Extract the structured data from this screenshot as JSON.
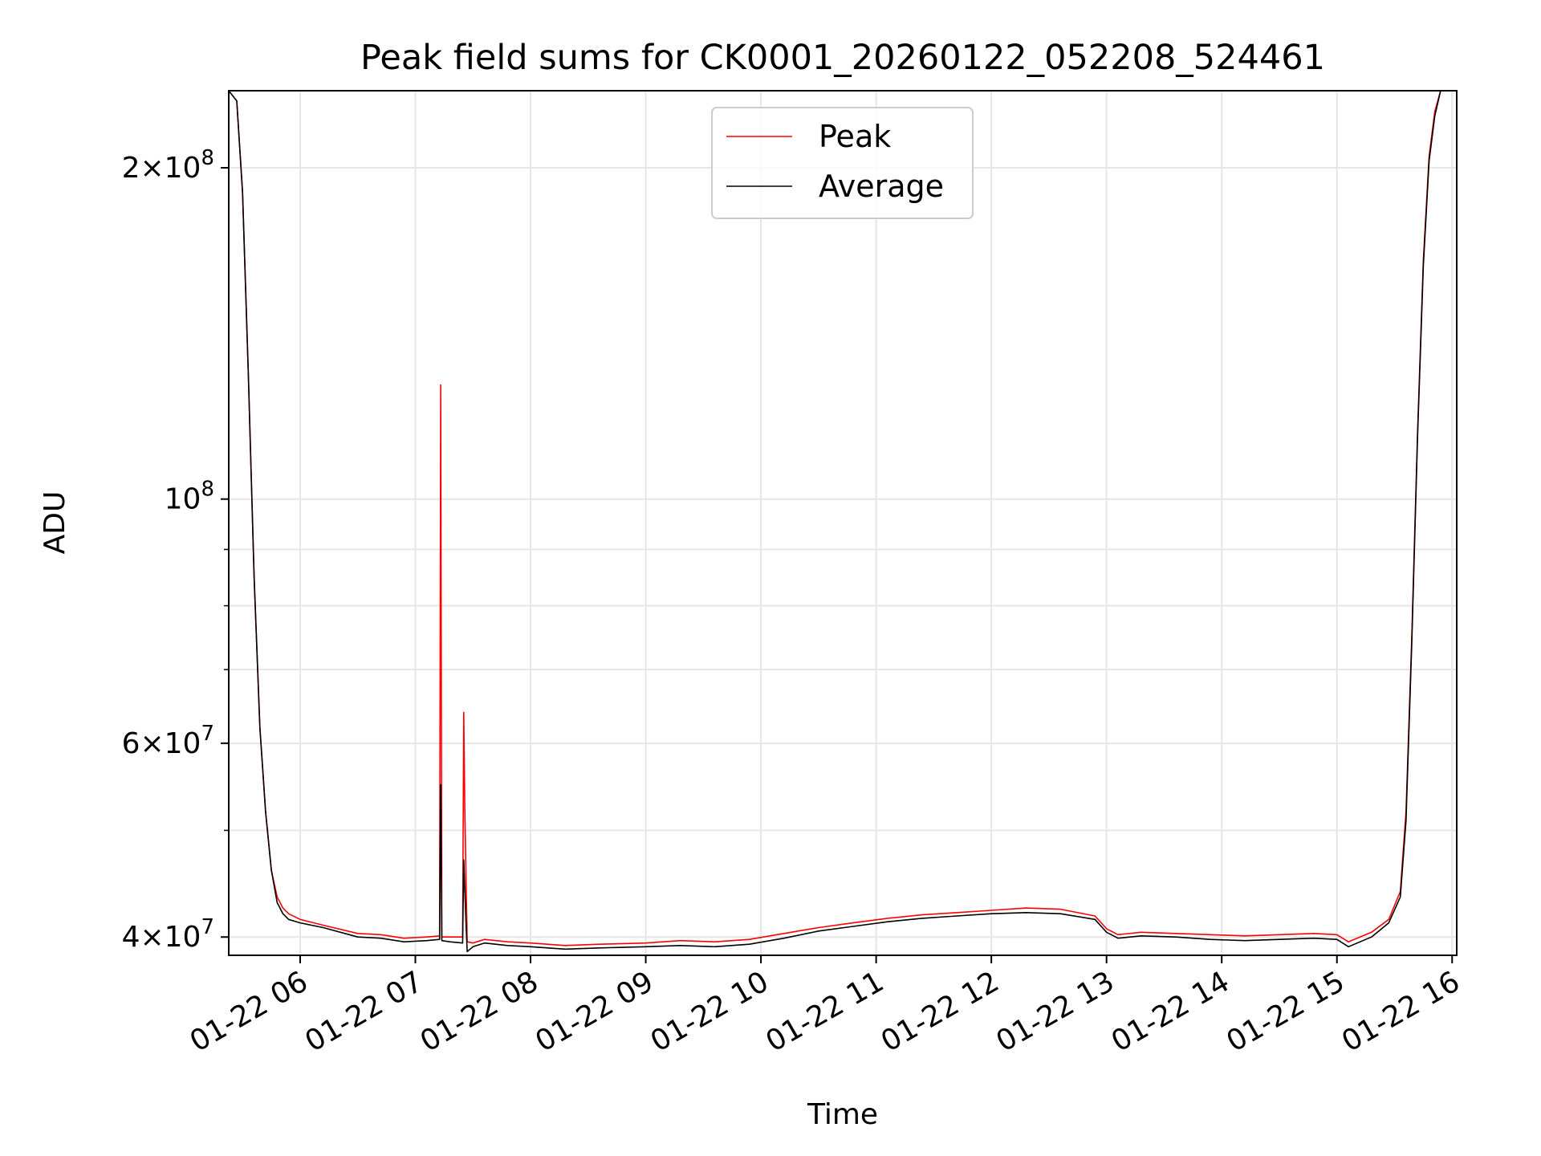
{
  "chart_data": {
    "type": "line",
    "title": "Peak field sums for CK0001_20260122_052208_524461",
    "xlabel": "Time",
    "ylabel": "ADU",
    "yscale": "log",
    "ylim": [
      38500000,
      235000000
    ],
    "xlim": [
      5.38,
      16.04
    ],
    "grid": true,
    "legend_position": "top-center",
    "x_ticks": [
      {
        "value": 6,
        "label": "01-22 06"
      },
      {
        "value": 7,
        "label": "01-22 07"
      },
      {
        "value": 8,
        "label": "01-22 08"
      },
      {
        "value": 9,
        "label": "01-22 09"
      },
      {
        "value": 10,
        "label": "01-22 10"
      },
      {
        "value": 11,
        "label": "01-22 11"
      },
      {
        "value": 12,
        "label": "01-22 12"
      },
      {
        "value": 13,
        "label": "01-22 13"
      },
      {
        "value": 14,
        "label": "01-22 14"
      },
      {
        "value": 15,
        "label": "01-22 15"
      },
      {
        "value": 16,
        "label": "01-22 16"
      }
    ],
    "y_major_ticks": [
      {
        "value": 40000000,
        "mantissa": "4",
        "exp": "7",
        "label": "4 × 10^7"
      },
      {
        "value": 60000000,
        "mantissa": "6",
        "exp": "7",
        "label": "6 × 10^7"
      },
      {
        "value": 100000000,
        "mantissa": "",
        "exp": "8",
        "label": "10^8"
      },
      {
        "value": 200000000,
        "mantissa": "2",
        "exp": "8",
        "label": "2 × 10^8"
      }
    ],
    "y_minor_ticks": [
      50000000,
      70000000,
      80000000,
      90000000
    ],
    "series": [
      {
        "name": "Peak",
        "color": "#ff0000",
        "x": [
          5.38,
          5.45,
          5.5,
          5.55,
          5.6,
          5.65,
          5.7,
          5.75,
          5.8,
          5.85,
          5.9,
          6.0,
          6.2,
          6.5,
          6.7,
          6.9,
          7.1,
          7.21,
          7.22,
          7.23,
          7.3,
          7.41,
          7.42,
          7.43,
          7.44,
          7.45,
          7.5,
          7.6,
          7.8,
          8.0,
          8.3,
          8.6,
          9.0,
          9.3,
          9.6,
          9.9,
          10.2,
          10.5,
          10.8,
          11.1,
          11.4,
          11.7,
          12.0,
          12.3,
          12.6,
          12.9,
          13.0,
          13.1,
          13.3,
          13.6,
          13.9,
          14.2,
          14.5,
          14.8,
          15.0,
          15.1,
          15.3,
          15.45,
          15.55,
          15.6,
          15.65,
          15.7,
          15.75,
          15.8,
          15.85,
          15.9,
          15.95,
          16.04
        ],
        "y": [
          235000000,
          230000000,
          190000000,
          130000000,
          85000000,
          62000000,
          52000000,
          46000000,
          43500000,
          42500000,
          42000000,
          41500000,
          41000000,
          40300000,
          40200000,
          39900000,
          40000000,
          40100000,
          127000000,
          40000000,
          40000000,
          40000000,
          64000000,
          52000000,
          45000000,
          39600000,
          39500000,
          39800000,
          39600000,
          39500000,
          39300000,
          39400000,
          39500000,
          39700000,
          39600000,
          39800000,
          40300000,
          40800000,
          41200000,
          41600000,
          41900000,
          42100000,
          42300000,
          42500000,
          42400000,
          41800000,
          40700000,
          40200000,
          40400000,
          40300000,
          40200000,
          40100000,
          40200000,
          40300000,
          40200000,
          39600000,
          40400000,
          41500000,
          44000000,
          52000000,
          75000000,
          115000000,
          165000000,
          205000000,
          225000000,
          235000000,
          235000000,
          235000000
        ]
      },
      {
        "name": "Average",
        "color": "#000000",
        "x": [
          5.38,
          5.45,
          5.5,
          5.55,
          5.6,
          5.65,
          5.7,
          5.75,
          5.8,
          5.85,
          5.9,
          6.0,
          6.2,
          6.5,
          6.7,
          6.9,
          7.1,
          7.21,
          7.22,
          7.23,
          7.3,
          7.41,
          7.42,
          7.43,
          7.44,
          7.45,
          7.5,
          7.6,
          7.8,
          8.0,
          8.3,
          8.6,
          9.0,
          9.3,
          9.6,
          9.9,
          10.2,
          10.5,
          10.8,
          11.1,
          11.4,
          11.7,
          12.0,
          12.3,
          12.6,
          12.9,
          13.0,
          13.1,
          13.3,
          13.6,
          13.9,
          14.2,
          14.5,
          14.8,
          15.0,
          15.1,
          15.3,
          15.45,
          15.55,
          15.6,
          15.65,
          15.7,
          15.75,
          15.8,
          15.85,
          15.9,
          15.95,
          16.04
        ],
        "y": [
          235000000,
          230000000,
          190000000,
          130000000,
          85000000,
          62000000,
          52000000,
          46000000,
          43000000,
          42000000,
          41500000,
          41200000,
          40800000,
          40000000,
          39900000,
          39600000,
          39700000,
          39800000,
          55000000,
          39700000,
          39600000,
          39500000,
          47000000,
          44000000,
          41000000,
          38800000,
          39200000,
          39500000,
          39300000,
          39200000,
          39000000,
          39100000,
          39200000,
          39300000,
          39200000,
          39400000,
          39900000,
          40500000,
          40900000,
          41300000,
          41600000,
          41800000,
          42000000,
          42100000,
          42000000,
          41500000,
          40400000,
          39900000,
          40100000,
          40000000,
          39800000,
          39700000,
          39800000,
          39900000,
          39800000,
          39200000,
          40000000,
          41200000,
          43500000,
          51000000,
          74000000,
          114000000,
          163000000,
          203000000,
          223000000,
          235000000,
          235000000,
          235000000
        ]
      }
    ]
  }
}
